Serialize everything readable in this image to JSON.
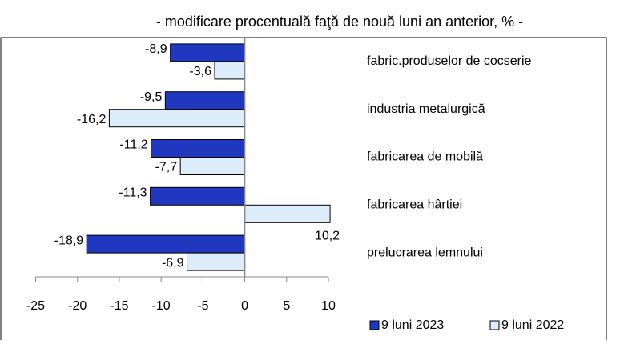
{
  "chart_data": {
    "type": "bar",
    "orientation": "horizontal",
    "subtitle": "- modificare procentuală faţă de nouă luni an anterior, % -",
    "categories": [
      "fabric.produselor de cocserie",
      "industria metalurgică",
      "fabricarea de mobilă",
      "fabricarea hârtiei",
      "prelucrarea lemnului"
    ],
    "series": [
      {
        "name": "9 luni 2023",
        "color": "#2038c0",
        "values": [
          -8.9,
          -9.5,
          -11.2,
          -11.3,
          -18.9
        ],
        "value_labels": [
          "-8,9",
          "-9,5",
          "-11,2",
          "-11,3",
          "-18,9"
        ]
      },
      {
        "name": "9 luni 2022",
        "color": "#dcecfa",
        "values": [
          -3.6,
          -16.2,
          -7.7,
          10.2,
          -6.9
        ],
        "value_labels": [
          "-3,6",
          "-16,2",
          "-7,7",
          "10,2",
          "-6,9"
        ]
      }
    ],
    "xlim": [
      -25,
      10
    ],
    "xticks": [
      -25,
      -20,
      -15,
      -10,
      -5,
      0,
      5,
      10
    ],
    "grid": false,
    "legend": "bottom-right"
  }
}
